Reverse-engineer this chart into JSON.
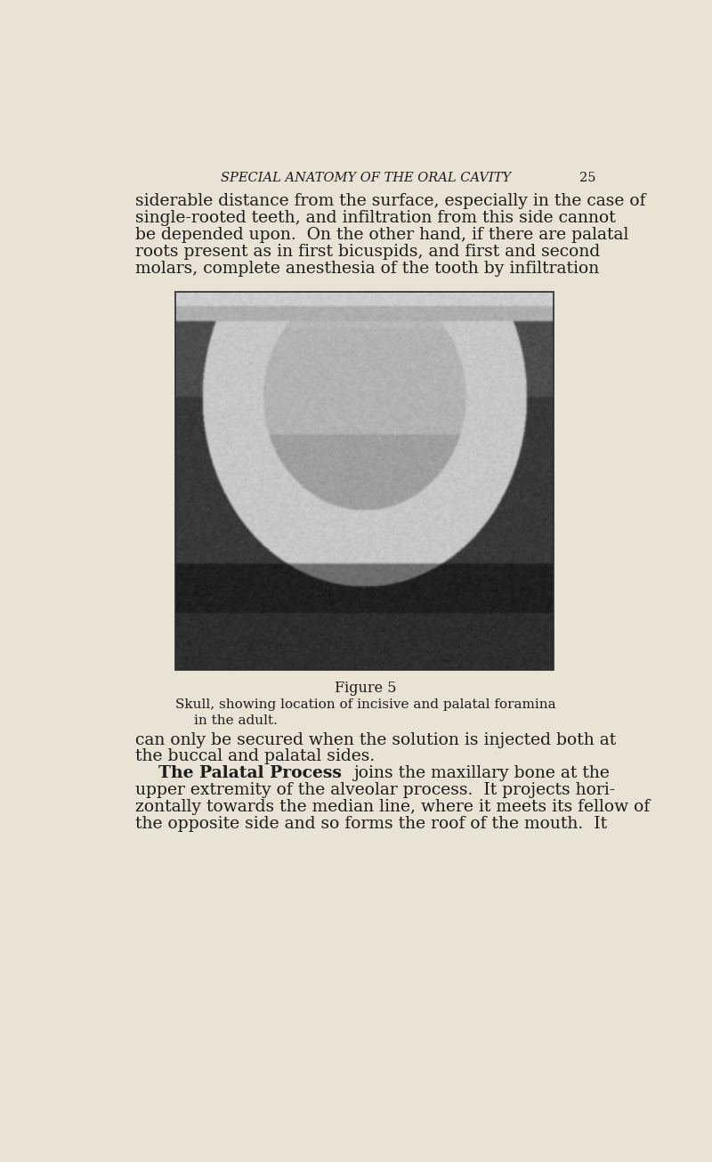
{
  "bg_color": "#e9e3d5",
  "page_width": 8.0,
  "page_height": 13.06,
  "dpi": 100,
  "header_italic": "SPECIAL ANATOMY OF THE ORAL CAVITY",
  "header_page": "25",
  "body_text_top": [
    "siderable distance from the surface, especially in the case of",
    "single-rooted teeth, and infiltration from this side cannot",
    "be depended upon.  On the other hand, if there are palatal",
    "roots present as in first bicuspids, and first and second",
    "molars, complete anesthesia of the tooth by infiltration"
  ],
  "figure_caption_line1": "Figure 5",
  "figure_caption_line2": "Skull, showing location of incisive and palatal foramina",
  "figure_caption_line3": "in the adult.",
  "body_text_bottom": [
    "can only be secured when the solution is injected both at",
    "the buccal and palatal sides.",
    "BOLD_LINE:    The Palatal Process : joins the maxillary bone at the",
    "upper extremity of the alveolar process.  It projects hori-",
    "zontally towards the median line, where it meets its fellow of",
    "the opposite side and so forms the roof of the mouth.  It"
  ],
  "text_color": "#1c1c1c",
  "header_fontsize": 10.5,
  "body_fontsize": 13.5,
  "caption_fontsize_title": 11.5,
  "caption_fontsize_body": 11.0,
  "img_photo_avg_gray": 0.52,
  "img_border_color": "#2a2a2a",
  "img_bg_color": "#888070"
}
